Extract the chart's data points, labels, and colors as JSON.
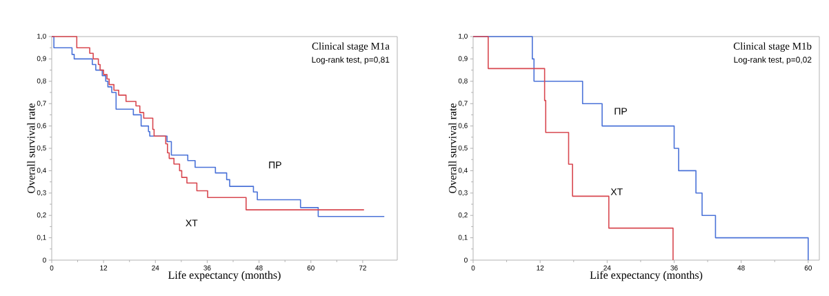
{
  "chart_data": [
    {
      "type": "step",
      "title": "Clinical stage M1a",
      "annotations": [
        "Log-rank test, p=0,81"
      ],
      "xlabel": "Life expectancy (months)",
      "ylabel": "Overall survival rate",
      "xlim": [
        0,
        80
      ],
      "ylim": [
        0,
        1
      ],
      "xticks": [
        0,
        12,
        24,
        36,
        48,
        60,
        72
      ],
      "yticks": [
        {
          "value": 0,
          "label": "0"
        },
        {
          "value": 0.1,
          "label": "0,1"
        },
        {
          "value": 0.2,
          "label": "0,2"
        },
        {
          "value": 0.3,
          "label": "0,3"
        },
        {
          "value": 0.4,
          "label": "0,4"
        },
        {
          "value": 0.5,
          "label": "0,5"
        },
        {
          "value": 0.6,
          "label": "0,6"
        },
        {
          "value": 0.7,
          "label": "0,7"
        },
        {
          "value": 0.8,
          "label": "0,8"
        },
        {
          "value": 0.9,
          "label": "0,9"
        },
        {
          "value": 1,
          "label": "1,0"
        }
      ],
      "grid": false,
      "legend": false,
      "marker": "none",
      "line_style": "solid",
      "series": [
        {
          "name": "ПР",
          "color": "#4a72d8",
          "x": [
            0,
            0.5,
            4.7,
            5.2,
            9.4,
            10.2,
            11.7,
            12.5,
            13.0,
            13.9,
            14.9,
            18.9,
            20.7,
            22.4,
            22.7,
            26.7,
            27.7,
            31.5,
            33.2,
            37.9,
            40.5,
            41.2,
            46.7,
            47.6,
            57.6,
            61.7,
            77.0
          ],
          "values": [
            1.0,
            0.95,
            0.92,
            0.9,
            0.875,
            0.85,
            0.825,
            0.8,
            0.775,
            0.75,
            0.675,
            0.65,
            0.6,
            0.575,
            0.555,
            0.53,
            0.47,
            0.445,
            0.415,
            0.39,
            0.36,
            0.33,
            0.305,
            0.27,
            0.235,
            0.195,
            0.195
          ]
        },
        {
          "name": "ХТ",
          "color": "#d8474f",
          "x": [
            0,
            5.8,
            8.8,
            9.6,
            10.8,
            11.2,
            12.0,
            12.8,
            13.3,
            14.4,
            15.5,
            17.2,
            19.5,
            20.4,
            21.3,
            23.4,
            23.7,
            26.4,
            26.8,
            27.2,
            28.3,
            29.6,
            30.1,
            31.3,
            33.6,
            36.1,
            45.0,
            72.3
          ],
          "values": [
            1.0,
            0.95,
            0.925,
            0.9,
            0.875,
            0.85,
            0.83,
            0.81,
            0.785,
            0.76,
            0.738,
            0.71,
            0.69,
            0.66,
            0.635,
            0.585,
            0.555,
            0.52,
            0.48,
            0.455,
            0.43,
            0.4,
            0.37,
            0.345,
            0.31,
            0.28,
            0.225,
            0.225
          ]
        }
      ]
    },
    {
      "type": "step",
      "title": "Clinical stage M1b",
      "annotations": [
        "Log-rank test, p=0,02"
      ],
      "xlabel": "Life expectancy (months)",
      "ylabel": "Overall survival rate",
      "xlim": [
        0,
        62
      ],
      "ylim": [
        0,
        1
      ],
      "xticks": [
        0,
        12,
        24,
        36,
        48,
        60
      ],
      "yticks": [
        {
          "value": 0,
          "label": "0"
        },
        {
          "value": 0.1,
          "label": "0,1"
        },
        {
          "value": 0.2,
          "label": "0,2"
        },
        {
          "value": 0.3,
          "label": "0,3"
        },
        {
          "value": 0.4,
          "label": "0,4"
        },
        {
          "value": 0.5,
          "label": "0,5"
        },
        {
          "value": 0.6,
          "label": "0,6"
        },
        {
          "value": 0.7,
          "label": "0,7"
        },
        {
          "value": 0.8,
          "label": "0,8"
        },
        {
          "value": 0.9,
          "label": "0,9"
        },
        {
          "value": 1,
          "label": "1,0"
        }
      ],
      "grid": false,
      "legend": false,
      "marker": "none",
      "line_style": "solid",
      "series": [
        {
          "name": "ПР",
          "color": "#4a72d8",
          "x": [
            0,
            10.6,
            10.9,
            19.6,
            23.1,
            36.0,
            36.8,
            39.9,
            41.0,
            43.4,
            60.0
          ],
          "values": [
            1.0,
            0.9,
            0.8,
            0.7,
            0.6,
            0.5,
            0.4,
            0.3,
            0.2,
            0.1,
            0.0
          ]
        },
        {
          "name": "ХТ",
          "color": "#d8474f",
          "x": [
            0,
            2.7,
            12.8,
            13.0,
            17.1,
            17.8,
            24.3,
            35.8
          ],
          "values": [
            1.0,
            0.857,
            0.714,
            0.571,
            0.429,
            0.286,
            0.143,
            0.0
          ]
        }
      ]
    }
  ]
}
